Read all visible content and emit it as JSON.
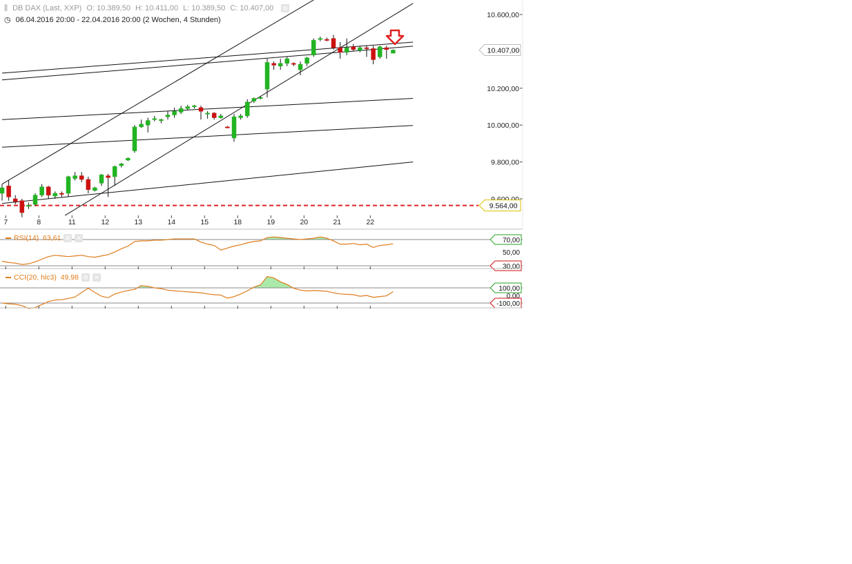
{
  "header": {
    "symbol": "DB DAX (Last, XXP)",
    "open": "O: 10.389,50",
    "high": "H: 10.411,00",
    "low": "L: 10.389,50",
    "close": "C: 10.407,00",
    "range": "06.04.2016 20:00 - 22.04.2016 20:00 (2 Wochen, 4 Stunden)"
  },
  "colors": {
    "up": "#22b422",
    "down": "#cc1111",
    "indicator": "#e07b1a",
    "support": "#e02020",
    "fill": "#a9e9a9"
  },
  "chart_data": [
    {
      "type": "candlestick",
      "title": "DB DAX (Last, XXP)",
      "x_tick_labels": [
        "7",
        "8",
        "11",
        "12",
        "13",
        "14",
        "15",
        "18",
        "19",
        "20",
        "21",
        "22"
      ],
      "y_tick_labels": [
        "10.600,00",
        "10.200,00",
        "10.000,00",
        "9.800,00",
        "9.600,00"
      ],
      "ylim": [
        9460,
        10700
      ],
      "last_price": 10407,
      "last_price_label": "10.407,00",
      "support_level": 9564,
      "support_label": "9.564,00",
      "candles": [
        {
          "o": 9630,
          "h": 9680,
          "l": 9590,
          "c": 9660
        },
        {
          "o": 9670,
          "h": 9700,
          "l": 9590,
          "c": 9610
        },
        {
          "o": 9600,
          "h": 9620,
          "l": 9570,
          "c": 9585
        },
        {
          "o": 9590,
          "h": 9600,
          "l": 9500,
          "c": 9525
        },
        {
          "o": 9560,
          "h": 9580,
          "l": 9545,
          "c": 9565
        },
        {
          "o": 9570,
          "h": 9630,
          "l": 9560,
          "c": 9620
        },
        {
          "o": 9620,
          "h": 9680,
          "l": 9610,
          "c": 9665
        },
        {
          "o": 9665,
          "h": 9670,
          "l": 9600,
          "c": 9620
        },
        {
          "o": 9615,
          "h": 9640,
          "l": 9600,
          "c": 9630
        },
        {
          "o": 9630,
          "h": 9640,
          "l": 9610,
          "c": 9625
        },
        {
          "o": 9630,
          "h": 9725,
          "l": 9610,
          "c": 9720
        },
        {
          "o": 9710,
          "h": 9745,
          "l": 9700,
          "c": 9725
        },
        {
          "o": 9725,
          "h": 9745,
          "l": 9690,
          "c": 9705
        },
        {
          "o": 9705,
          "h": 9720,
          "l": 9630,
          "c": 9650
        },
        {
          "o": 9645,
          "h": 9665,
          "l": 9640,
          "c": 9660
        },
        {
          "o": 9685,
          "h": 9735,
          "l": 9670,
          "c": 9730
        },
        {
          "o": 9725,
          "h": 9735,
          "l": 9610,
          "c": 9715
        },
        {
          "o": 9720,
          "h": 9780,
          "l": 9670,
          "c": 9775
        },
        {
          "o": 9780,
          "h": 9795,
          "l": 9770,
          "c": 9790
        },
        {
          "o": 9810,
          "h": 9825,
          "l": 9805,
          "c": 9820
        },
        {
          "o": 9860,
          "h": 10000,
          "l": 9850,
          "c": 9990
        },
        {
          "o": 9990,
          "h": 10030,
          "l": 9985,
          "c": 10005
        },
        {
          "o": 10000,
          "h": 10040,
          "l": 9960,
          "c": 10025
        },
        {
          "o": 10030,
          "h": 10050,
          "l": 10020,
          "c": 10035
        },
        {
          "o": 10025,
          "h": 10035,
          "l": 10010,
          "c": 10030
        },
        {
          "o": 10045,
          "h": 10075,
          "l": 10030,
          "c": 10055
        },
        {
          "o": 10055,
          "h": 10095,
          "l": 10040,
          "c": 10075
        },
        {
          "o": 10070,
          "h": 10105,
          "l": 10060,
          "c": 10090
        },
        {
          "o": 10090,
          "h": 10110,
          "l": 10080,
          "c": 10100
        },
        {
          "o": 10100,
          "h": 10110,
          "l": 10090,
          "c": 10105
        },
        {
          "o": 10095,
          "h": 10105,
          "l": 10030,
          "c": 10075
        },
        {
          "o": 10060,
          "h": 10075,
          "l": 10035,
          "c": 10065
        },
        {
          "o": 10065,
          "h": 10070,
          "l": 10030,
          "c": 10040
        },
        {
          "o": 10040,
          "h": 10060,
          "l": 10035,
          "c": 10050
        },
        {
          "o": 9990,
          "h": 9995,
          "l": 9985,
          "c": 9988
        },
        {
          "o": 9930,
          "h": 10060,
          "l": 9910,
          "c": 10045
        },
        {
          "o": 10040,
          "h": 10060,
          "l": 10030,
          "c": 10050
        },
        {
          "o": 10050,
          "h": 10140,
          "l": 10040,
          "c": 10125
        },
        {
          "o": 10130,
          "h": 10150,
          "l": 10120,
          "c": 10145
        },
        {
          "o": 10145,
          "h": 10155,
          "l": 10140,
          "c": 10150
        },
        {
          "o": 10195,
          "h": 10360,
          "l": 10150,
          "c": 10340
        },
        {
          "o": 10335,
          "h": 10345,
          "l": 10300,
          "c": 10325
        },
        {
          "o": 10320,
          "h": 10360,
          "l": 10300,
          "c": 10335
        },
        {
          "o": 10335,
          "h": 10370,
          "l": 10320,
          "c": 10360
        },
        {
          "o": 10335,
          "h": 10340,
          "l": 10320,
          "c": 10330
        },
        {
          "o": 10300,
          "h": 10345,
          "l": 10270,
          "c": 10330
        },
        {
          "o": 10335,
          "h": 10370,
          "l": 10320,
          "c": 10365
        },
        {
          "o": 10380,
          "h": 10470,
          "l": 10370,
          "c": 10460
        },
        {
          "o": 10465,
          "h": 10480,
          "l": 10455,
          "c": 10470
        },
        {
          "o": 10465,
          "h": 10475,
          "l": 10455,
          "c": 10462
        },
        {
          "o": 10470,
          "h": 10490,
          "l": 10410,
          "c": 10420
        },
        {
          "o": 10420,
          "h": 10450,
          "l": 10360,
          "c": 10395
        },
        {
          "o": 10395,
          "h": 10470,
          "l": 10380,
          "c": 10420
        },
        {
          "o": 10425,
          "h": 10440,
          "l": 10400,
          "c": 10410
        },
        {
          "o": 10405,
          "h": 10430,
          "l": 10395,
          "c": 10420
        },
        {
          "o": 10420,
          "h": 10430,
          "l": 10370,
          "c": 10415
        },
        {
          "o": 10415,
          "h": 10430,
          "l": 10330,
          "c": 10355
        },
        {
          "o": 10370,
          "h": 10430,
          "l": 10360,
          "c": 10425
        },
        {
          "o": 10420,
          "h": 10430,
          "l": 10360,
          "c": 10410
        },
        {
          "o": 10390,
          "h": 10411,
          "l": 10389.5,
          "c": 10407
        }
      ],
      "trendlines": [
        {
          "from": [
            0,
            10282
          ],
          "to": [
            62,
            10450
          ]
        },
        {
          "from": [
            0,
            10245
          ],
          "to": [
            62,
            10428
          ]
        },
        {
          "from": [
            0,
            10030
          ],
          "to": [
            62,
            10145
          ]
        },
        {
          "from": [
            0,
            9880
          ],
          "to": [
            62,
            9998
          ]
        },
        {
          "from": [
            0,
            9575
          ],
          "to": [
            62,
            9800
          ]
        },
        {
          "from": [
            0,
            9680
          ],
          "to": [
            57.4,
            10900
          ]
        },
        {
          "from": [
            9.5,
            9510
          ],
          "to": [
            62,
            10660
          ]
        }
      ]
    },
    {
      "type": "line",
      "title": "RSI(14)",
      "series": [
        {
          "name": "RSI(14)",
          "values": [
            37,
            35,
            34,
            32,
            33,
            36,
            40,
            44,
            46,
            45,
            44,
            45,
            46,
            44,
            43,
            45,
            47,
            51,
            56,
            60,
            67,
            68,
            68,
            69,
            69,
            70,
            71,
            71,
            71,
            71,
            66,
            63,
            61,
            54,
            57,
            60,
            62,
            65,
            67,
            68,
            73,
            74,
            73,
            72,
            71,
            70,
            71,
            72,
            74,
            72,
            68,
            63,
            63,
            64,
            62,
            63,
            58,
            61,
            62,
            63.61
          ]
        }
      ],
      "value_label": "63,61",
      "levels": [
        70,
        30
      ],
      "level_labels": [
        "70,00",
        "50,00",
        "30,00"
      ]
    },
    {
      "type": "line",
      "title": "CCI(20, hlc3)",
      "series": [
        {
          "name": "CCI(20, hlc3)",
          "values": [
            -100,
            -110,
            -115,
            -135,
            -170,
            -160,
            -120,
            -80,
            -60,
            -55,
            -40,
            -20,
            40,
            95,
            40,
            -10,
            -30,
            20,
            45,
            65,
            80,
            130,
            120,
            100,
            90,
            70,
            60,
            55,
            48,
            42,
            35,
            20,
            10,
            5,
            -35,
            -15,
            20,
            60,
            110,
            140,
            250,
            230,
            180,
            145,
            95,
            70,
            60,
            65,
            60,
            55,
            35,
            20,
            15,
            10,
            -10,
            0,
            -25,
            -15,
            -5,
            49.98
          ]
        }
      ],
      "value_label": "49,98",
      "levels": [
        100,
        -100
      ],
      "level_labels": [
        "100,00",
        "0,00",
        "-100,00"
      ]
    }
  ]
}
